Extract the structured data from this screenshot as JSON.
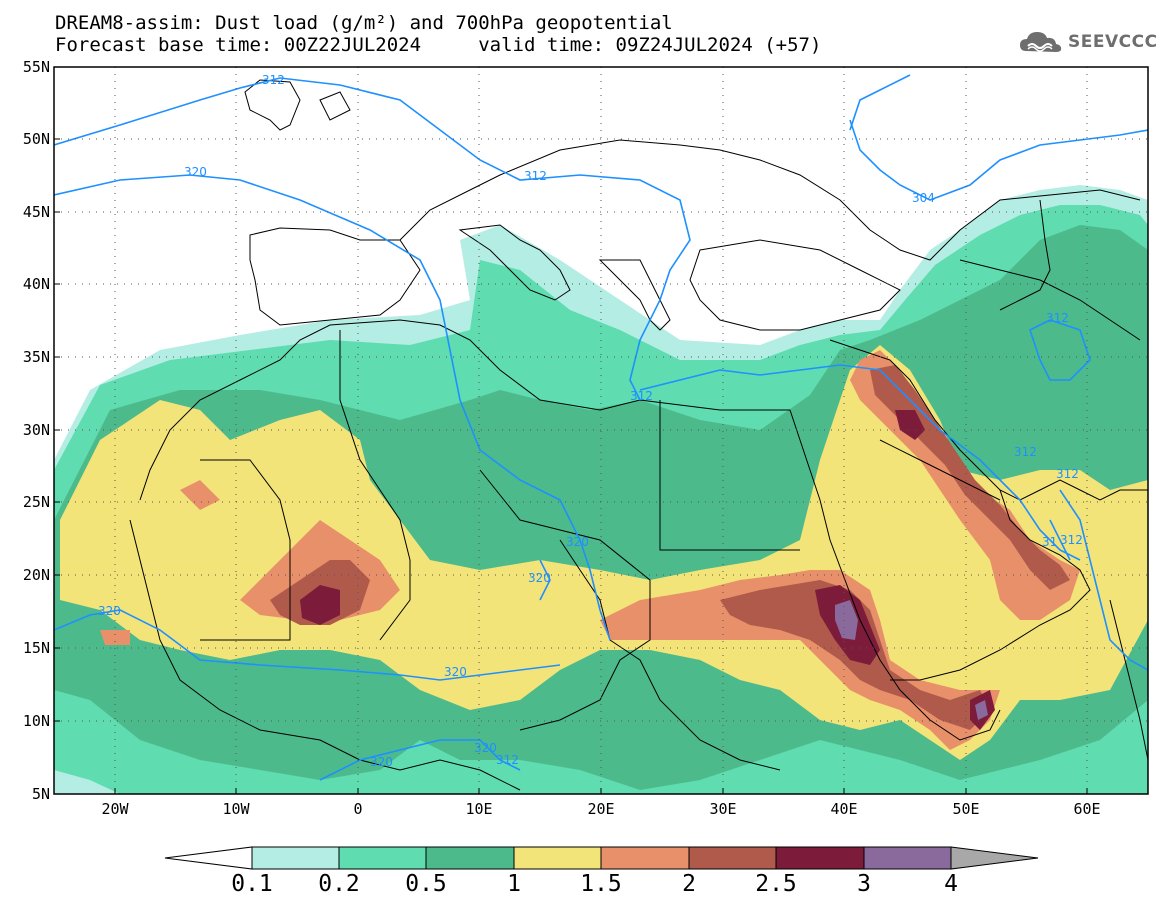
{
  "header": {
    "title_line1": "DREAM8-assim: Dust load (g/m²) and 700hPa geopotential",
    "title_line2": "Forecast base time: 00Z22JUL2024     valid time: 09Z24JUL2024 (+57)",
    "logo_text": "SEEVCCC",
    "logo_icon": "cloud-icon"
  },
  "map": {
    "lat_labels": [
      "55N",
      "50N",
      "45N",
      "40N",
      "35N",
      "30N",
      "25N",
      "20N",
      "15N",
      "10N",
      "5N"
    ],
    "lon_labels": [
      "20W",
      "10W",
      "0",
      "10E",
      "20E",
      "30E",
      "40E",
      "50E",
      "60E"
    ],
    "extent": {
      "lon_min": -25,
      "lon_max": 65,
      "lat_min": 5,
      "lat_max": 55
    },
    "contour_labels": [
      "312",
      "312",
      "320",
      "312",
      "304",
      "312",
      "320",
      "320",
      "320",
      "320",
      "312",
      "312",
      "320",
      "320",
      "312",
      "31",
      "312",
      "312"
    ]
  },
  "colorbar": {
    "levels": [
      "0.1",
      "0.2",
      "0.5",
      "1",
      "1.5",
      "2",
      "2.5",
      "3",
      "4"
    ],
    "colors": [
      "#b4ede4",
      "#5fdcb0",
      "#4dba8c",
      "#f3e47a",
      "#e8906a",
      "#b05a4b",
      "#7d1b3a",
      "#8a6a9c",
      "#a8a8a8"
    ],
    "under_color": "#ffffff",
    "over_color": "#a8a8a8"
  },
  "colors": {
    "contour": "#1e90ff",
    "border": "#000000"
  }
}
